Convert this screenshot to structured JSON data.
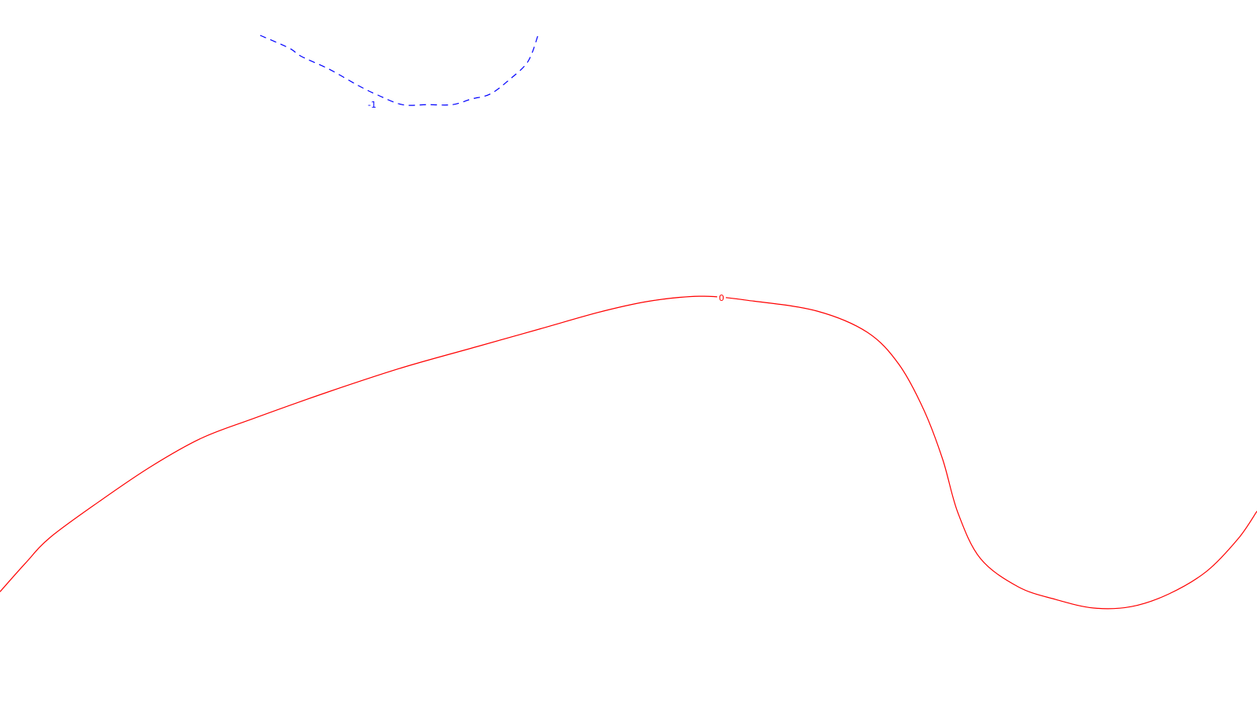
{
  "chart_data": {
    "type": "contour",
    "title": "",
    "xlabel": "",
    "ylabel": "",
    "grid": false,
    "legend": "none",
    "series": [
      {
        "level": "-1",
        "label": "-1",
        "color": "#0000ff",
        "line_style": "dashed",
        "points": [
          [
            0.207,
            0.05
          ],
          [
            0.23,
            0.068
          ],
          [
            0.24,
            0.08
          ],
          [
            0.262,
            0.098
          ],
          [
            0.285,
            0.121
          ],
          [
            0.3,
            0.134
          ],
          [
            0.32,
            0.148
          ],
          [
            0.34,
            0.148
          ],
          [
            0.36,
            0.148
          ],
          [
            0.375,
            0.14
          ],
          [
            0.39,
            0.133
          ],
          [
            0.405,
            0.113
          ],
          [
            0.42,
            0.087
          ],
          [
            0.428,
            0.05
          ]
        ],
        "label_position": [
          0.296,
          0.148
        ]
      },
      {
        "level": "0",
        "label": "0",
        "color": "#ff0000",
        "line_style": "solid",
        "points": [
          [
            0.0,
            0.837
          ],
          [
            0.02,
            0.797
          ],
          [
            0.04,
            0.76
          ],
          [
            0.08,
            0.708
          ],
          [
            0.12,
            0.66
          ],
          [
            0.16,
            0.62
          ],
          [
            0.2,
            0.593
          ],
          [
            0.26,
            0.555
          ],
          [
            0.32,
            0.52
          ],
          [
            0.38,
            0.49
          ],
          [
            0.43,
            0.465
          ],
          [
            0.48,
            0.44
          ],
          [
            0.52,
            0.425
          ],
          [
            0.56,
            0.419
          ],
          [
            0.6,
            0.426
          ],
          [
            0.65,
            0.44
          ],
          [
            0.69,
            0.47
          ],
          [
            0.715,
            0.515
          ],
          [
            0.735,
            0.58
          ],
          [
            0.75,
            0.65
          ],
          [
            0.762,
            0.725
          ],
          [
            0.78,
            0.79
          ],
          [
            0.81,
            0.83
          ],
          [
            0.84,
            0.848
          ],
          [
            0.87,
            0.86
          ],
          [
            0.9,
            0.858
          ],
          [
            0.93,
            0.84
          ],
          [
            0.96,
            0.808
          ],
          [
            0.985,
            0.762
          ],
          [
            1.0,
            0.723
          ]
        ],
        "label_position": [
          0.574,
          0.421
        ]
      }
    ]
  }
}
